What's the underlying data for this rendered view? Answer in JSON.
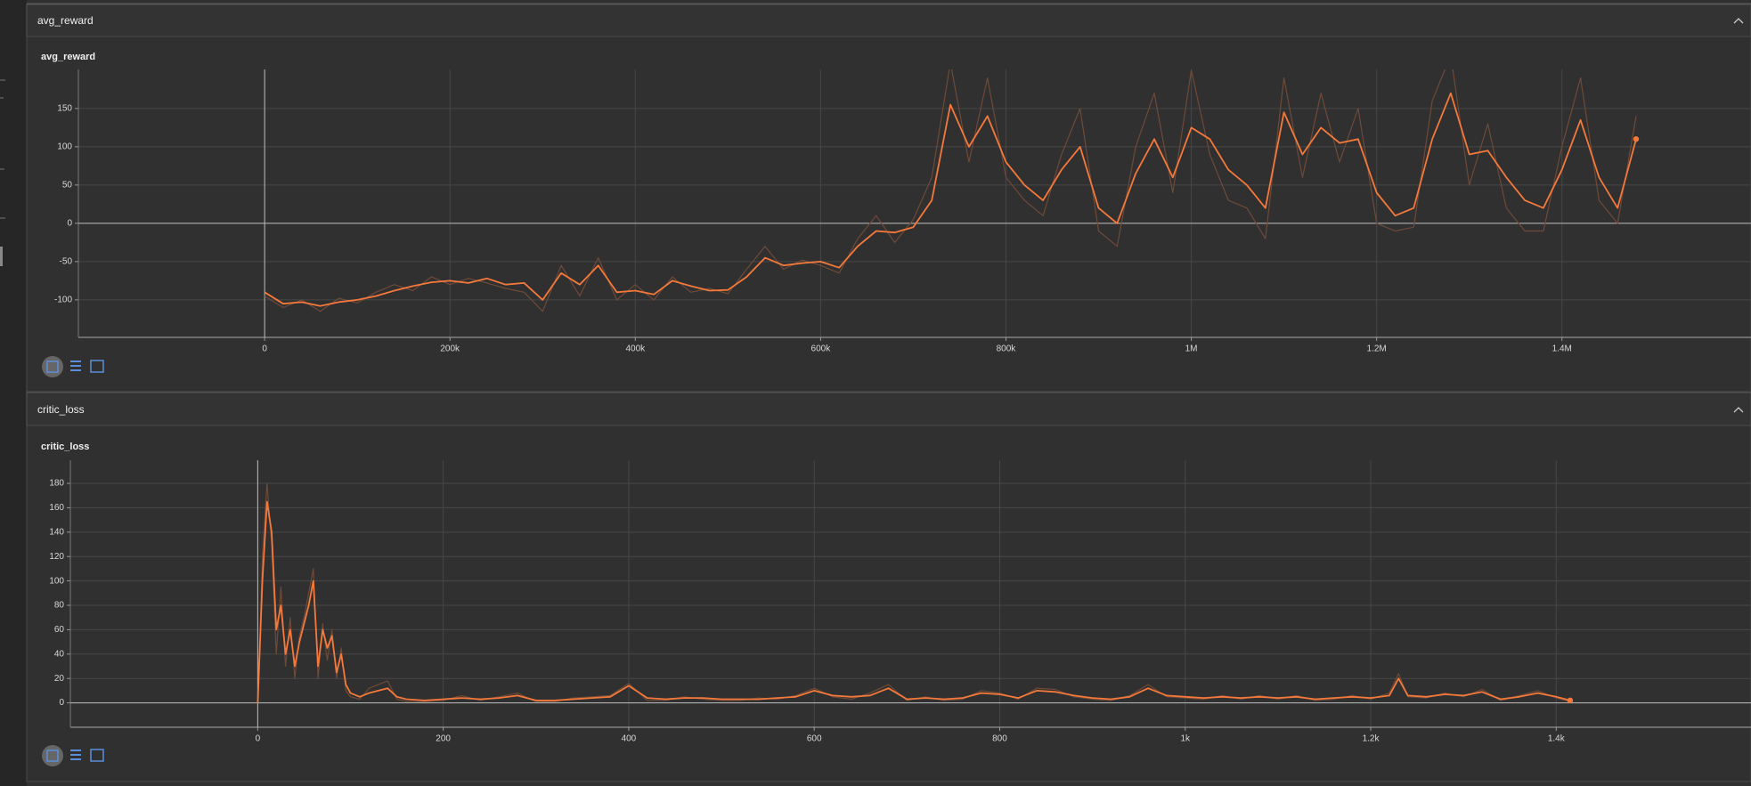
{
  "chart_data": [
    {
      "type": "line",
      "group": "avg_reward",
      "title": "avg_reward",
      "x": [
        0,
        20000,
        40000,
        60000,
        80000,
        100000,
        120000,
        140000,
        160000,
        180000,
        200000,
        220000,
        240000,
        260000,
        280000,
        300000,
        320000,
        340000,
        360000,
        380000,
        400000,
        420000,
        440000,
        460000,
        480000,
        500000,
        520000,
        540000,
        560000,
        580000,
        600000,
        620000,
        640000,
        660000,
        680000,
        700000,
        720000,
        740000,
        760000,
        780000,
        800000,
        820000,
        840000,
        860000,
        880000,
        900000,
        920000,
        940000,
        960000,
        980000,
        1000000,
        1020000,
        1040000,
        1060000,
        1080000,
        1100000,
        1120000,
        1140000,
        1160000,
        1180000,
        1200000,
        1220000,
        1240000,
        1260000,
        1280000,
        1300000,
        1320000,
        1340000,
        1360000,
        1380000,
        1400000,
        1420000,
        1440000,
        1460000,
        1480000
      ],
      "series": [
        {
          "color": "#6e4a38",
          "values": [
            -95,
            -110,
            -100,
            -115,
            -98,
            -104,
            -90,
            -80,
            -88,
            -70,
            -80,
            -72,
            -78,
            -85,
            -90,
            -115,
            -55,
            -95,
            -45,
            -100,
            -80,
            -100,
            -70,
            -90,
            -85,
            -92,
            -60,
            -30,
            -60,
            -48,
            -55,
            -65,
            -20,
            10,
            -25,
            5,
            60,
            210,
            80,
            190,
            60,
            30,
            10,
            90,
            150,
            -10,
            -30,
            100,
            170,
            40,
            200,
            90,
            30,
            20,
            -20,
            190,
            60,
            170,
            80,
            150,
            0,
            -10,
            -5,
            160,
            220,
            50,
            130,
            20,
            -10,
            -10,
            100,
            190,
            30,
            0,
            140
          ]
        },
        {
          "color": "#f5793b",
          "values": [
            -90,
            -105,
            -103,
            -108,
            -103,
            -100,
            -95,
            -88,
            -82,
            -77,
            -75,
            -78,
            -72,
            -80,
            -78,
            -100,
            -65,
            -80,
            -55,
            -90,
            -88,
            -93,
            -75,
            -82,
            -88,
            -87,
            -70,
            -45,
            -55,
            -52,
            -50,
            -58,
            -30,
            -10,
            -12,
            -5,
            30,
            155,
            100,
            140,
            80,
            50,
            30,
            70,
            100,
            20,
            0,
            65,
            110,
            60,
            125,
            110,
            70,
            50,
            20,
            145,
            90,
            125,
            105,
            110,
            40,
            10,
            20,
            110,
            170,
            90,
            95,
            60,
            30,
            20,
            70,
            135,
            60,
            20,
            110
          ]
        }
      ],
      "xlim": [
        -201000,
        1604000
      ],
      "xticks": [
        0,
        {
          "value": 200000,
          "label": "200k"
        },
        {
          "value": 400000,
          "label": "400k"
        },
        {
          "value": 600000,
          "label": "600k"
        },
        {
          "value": 800000,
          "label": "800k"
        },
        {
          "value": 1000000,
          "label": "1M"
        },
        {
          "value": 1200000,
          "label": "1.2M"
        },
        {
          "value": 1400000,
          "label": "1.4M"
        }
      ],
      "ylim": [
        -149,
        201
      ],
      "yticks": [
        -100,
        -50,
        0,
        50,
        100,
        150
      ],
      "grid": true
    },
    {
      "type": "line",
      "group": "critic_loss",
      "title": "critic_loss",
      "x": [
        0,
        5,
        10,
        15,
        20,
        25,
        30,
        35,
        40,
        45,
        50,
        55,
        60,
        65,
        70,
        75,
        80,
        85,
        90,
        95,
        100,
        110,
        120,
        130,
        140,
        150,
        160,
        180,
        200,
        220,
        240,
        260,
        280,
        300,
        320,
        340,
        360,
        380,
        400,
        420,
        440,
        460,
        480,
        500,
        520,
        540,
        560,
        580,
        600,
        620,
        640,
        660,
        680,
        700,
        720,
        740,
        760,
        780,
        800,
        820,
        840,
        860,
        880,
        900,
        920,
        940,
        960,
        980,
        1000,
        1020,
        1040,
        1060,
        1080,
        1100,
        1120,
        1140,
        1160,
        1180,
        1200,
        1220,
        1230,
        1240,
        1260,
        1280,
        1300,
        1320,
        1340,
        1360,
        1380,
        1400,
        1415
      ],
      "series": [
        {
          "color": "#6e4a38",
          "values": [
            0,
            120,
            180,
            130,
            40,
            95,
            30,
            70,
            20,
            55,
            70,
            90,
            110,
            20,
            65,
            35,
            60,
            20,
            45,
            10,
            5,
            3,
            12,
            15,
            18,
            3,
            1,
            1,
            2,
            6,
            2,
            5,
            8,
            1,
            1,
            4,
            5,
            6,
            16,
            2,
            2,
            5,
            3,
            2,
            2,
            4,
            3,
            6,
            12,
            5,
            3,
            8,
            15,
            2,
            5,
            2,
            3,
            10,
            8,
            3,
            12,
            11,
            5,
            3,
            2,
            6,
            15,
            5,
            4,
            3,
            6,
            3,
            6,
            3,
            6,
            2,
            3,
            6,
            3,
            8,
            24,
            5,
            4,
            8,
            5,
            11,
            2,
            6,
            10,
            4,
            1
          ]
        },
        {
          "color": "#f5793b",
          "values": [
            0,
            100,
            165,
            140,
            60,
            80,
            40,
            60,
            30,
            50,
            65,
            80,
            100,
            30,
            60,
            45,
            55,
            25,
            40,
            15,
            8,
            5,
            8,
            10,
            12,
            5,
            3,
            2,
            3,
            4,
            3,
            4,
            6,
            2,
            2,
            3,
            4,
            5,
            14,
            4,
            3,
            4,
            4,
            3,
            3,
            3,
            4,
            5,
            10,
            6,
            5,
            6,
            12,
            3,
            4,
            3,
            4,
            8,
            7,
            4,
            10,
            9,
            6,
            4,
            3,
            5,
            12,
            6,
            5,
            4,
            5,
            4,
            5,
            4,
            5,
            3,
            4,
            5,
            4,
            6,
            20,
            6,
            5,
            7,
            6,
            9,
            3,
            5,
            8,
            5,
            2
          ]
        }
      ],
      "xlim": [
        -202,
        1610
      ],
      "xticks": [
        0,
        200,
        400,
        600,
        800,
        {
          "value": 1000,
          "label": "1k"
        },
        {
          "value": 1200,
          "label": "1.2k"
        },
        {
          "value": 1400,
          "label": "1.4k"
        }
      ],
      "ylim": [
        -20,
        199
      ],
      "yticks": [
        0,
        20,
        40,
        60,
        80,
        100,
        120,
        140,
        160,
        180
      ],
      "grid": true
    }
  ]
}
